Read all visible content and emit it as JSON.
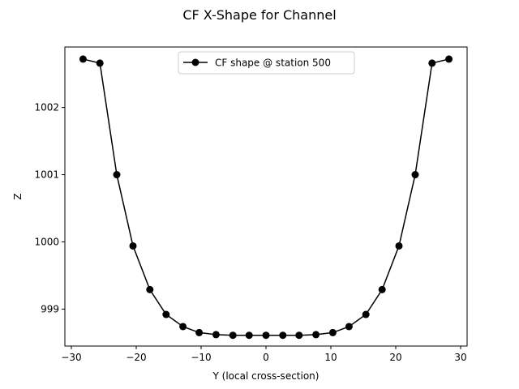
{
  "chart_data": {
    "type": "line",
    "title": "CF X-Shape for Channel",
    "xlabel": "Y (local cross-section)",
    "ylabel": "Z",
    "xlim": [
      -31,
      31
    ],
    "ylim": [
      998.45,
      1002.9
    ],
    "xticks": [
      -30,
      -20,
      -10,
      0,
      10,
      20,
      30
    ],
    "xtick_labels": [
      "−30",
      "−20",
      "−10",
      "0",
      "10",
      "20",
      "30"
    ],
    "yticks": [
      999,
      1000,
      1001,
      1002
    ],
    "ytick_labels": [
      "999",
      "1000",
      "1001",
      "1002"
    ],
    "grid": false,
    "legend_position": "upper-center",
    "series": [
      {
        "name": "CF shape @ station 500",
        "color": "#000000",
        "marker": "circle",
        "x": [
          -28.2,
          -25.6,
          -23.0,
          -20.5,
          -17.9,
          -15.4,
          -12.8,
          -10.3,
          -7.7,
          -5.1,
          -2.6,
          0,
          2.6,
          5.1,
          7.7,
          10.3,
          12.8,
          15.4,
          17.9,
          20.5,
          23.0,
          25.6,
          28.2
        ],
        "y": [
          1002.72,
          1002.66,
          1001.0,
          999.94,
          999.29,
          998.92,
          998.74,
          998.65,
          998.62,
          998.61,
          998.61,
          998.61,
          998.61,
          998.61,
          998.62,
          998.65,
          998.74,
          998.92,
          999.29,
          999.94,
          1001.0,
          1002.66,
          1002.72
        ]
      }
    ]
  }
}
